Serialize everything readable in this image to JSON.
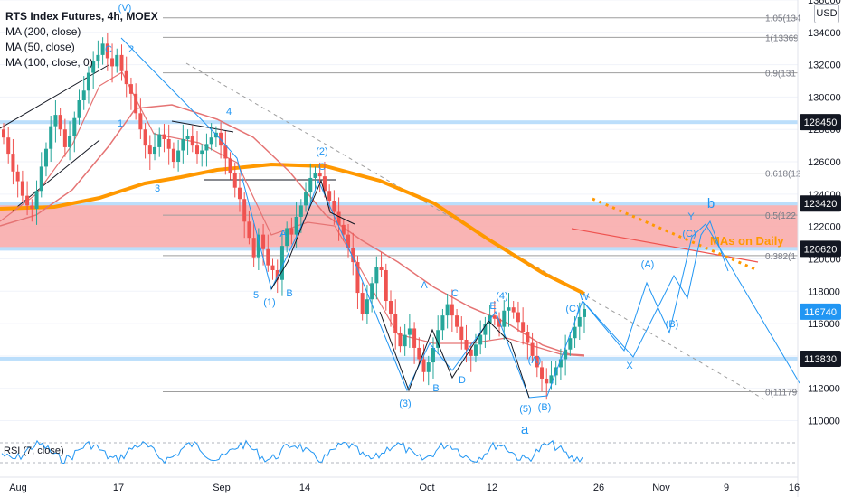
{
  "header": {
    "title": "RTS Index Futures, 4h, MOEX",
    "currency": "USD",
    "legend": [
      "MA (200, close)",
      "MA (50, close)",
      "MA (100, close, 0)"
    ],
    "rsi_label": "RSI (7, close)"
  },
  "colors": {
    "candle_up": "#26a69a",
    "candle_down": "#ef5350",
    "ma200": "#ff9800",
    "ma_red": "#e57373",
    "wave_blue": "#2196f3",
    "zone_red": "#f8a7a7",
    "hline_blue": "#bbdefb",
    "label_dark_bg": "#131722",
    "label_blue_bg": "#2196f3"
  },
  "chart_data": {
    "type": "candlestick",
    "title": "RTS Index Futures, 4h, MOEX",
    "ylim": [
      108800,
      136000
    ],
    "y_ticks": [
      110000,
      112000,
      114000,
      116000,
      118000,
      120000,
      122000,
      124000,
      126000,
      128000,
      130000,
      132000,
      134000,
      136000
    ],
    "x_tick_labels": [
      "Aug",
      "17",
      "Sep",
      "14",
      "Oct",
      "12",
      "26",
      "Nov",
      "9",
      "16"
    ],
    "price_labels": [
      {
        "text": "128450",
        "value": 128450,
        "style": "dark"
      },
      {
        "text": "123420",
        "value": 123420,
        "style": "dark"
      },
      {
        "text": "120620",
        "value": 120620,
        "style": "dark"
      },
      {
        "text": "116740",
        "value": 116740,
        "style": "blue"
      },
      {
        "text": "113830",
        "value": 113830,
        "style": "dark"
      }
    ],
    "fib_levels": [
      {
        "label": "1.05(134",
        "value": 134900
      },
      {
        "label": "1(13369",
        "value": 133690
      },
      {
        "label": "0.9(131",
        "value": 131500
      },
      {
        "label": "0.618(12",
        "value": 125300
      },
      {
        "label": "0.5(122",
        "value": 122700
      },
      {
        "label": "0.382(1",
        "value": 120200
      },
      {
        "label": "0(11179",
        "value": 111790
      }
    ],
    "resistance_zone": [
      120620,
      123420
    ],
    "annotation": "MAs on Daily",
    "closes": [
      127500,
      126500,
      125400,
      124800,
      123900,
      123300,
      123100,
      124200,
      125700,
      126800,
      128200,
      128900,
      128000,
      126900,
      127600,
      128700,
      129800,
      130400,
      131500,
      132200,
      132600,
      133300,
      132400,
      131900,
      132600,
      131600,
      130800,
      130200,
      129000,
      128000,
      127000,
      126500,
      126900,
      127700,
      127400,
      126800,
      126000,
      126700,
      127400,
      127600,
      127000,
      126500,
      126700,
      127100,
      127500,
      127800,
      127000,
      126200,
      125300,
      124400,
      123700,
      122300,
      121300,
      120100,
      121500,
      120600,
      119600,
      119300,
      118700,
      120800,
      121900,
      121500,
      122600,
      123300,
      124100,
      125000,
      125300,
      125100,
      124200,
      123600,
      122900,
      122100,
      121500,
      120700,
      119800,
      117900,
      116600,
      117500,
      118500,
      119500,
      119300,
      117400,
      116600,
      115400,
      114600,
      115300,
      115700,
      114500,
      113800,
      113000,
      113600,
      114500,
      115600,
      116500,
      117200,
      116500,
      115800,
      115000,
      114400,
      114000,
      114700,
      115300,
      116000,
      116500,
      116300,
      115800,
      116800,
      117000,
      116700,
      116100,
      115500,
      114800,
      114000,
      113300,
      112600,
      112300,
      112800,
      113300,
      113800,
      114400,
      115100,
      115800,
      116400,
      116900
    ],
    "rsi": {
      "ylim": [
        0,
        100
      ],
      "upper": 70,
      "lower": 30
    },
    "wave_labels": [
      "(V)",
      "C",
      "2",
      "1",
      "3",
      "4",
      "C",
      "(2)",
      "5",
      "(1)",
      "B",
      "A",
      "(3)",
      "B",
      "D",
      "A",
      "C",
      "E",
      "(4)",
      "(5)",
      "(A)",
      "(B)",
      "(C)",
      "W",
      "X",
      "(A)",
      "(B)",
      "(C)",
      "Y",
      "b",
      "a"
    ]
  }
}
